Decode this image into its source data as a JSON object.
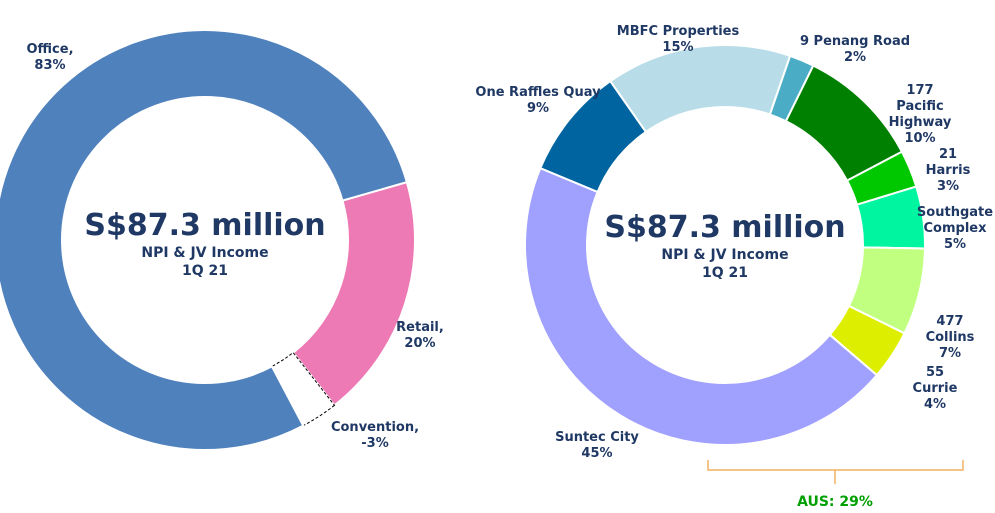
{
  "chart_data": [
    {
      "type": "donut",
      "center_title": "S$87.3 million",
      "center_subtitle": "NPI & JV Income",
      "center_period": "1Q 21",
      "categories": [
        "Office,",
        "Retail,",
        "Convention,"
      ],
      "values": [
        83,
        20,
        -3
      ],
      "value_labels": [
        "83%",
        "20%",
        "-3%"
      ],
      "colors": [
        "#4f81bd",
        "#ee7ab5",
        "#ffffff"
      ]
    },
    {
      "type": "donut",
      "center_title": "S$87.3 million",
      "center_subtitle": "NPI & JV Income",
      "center_period": "1Q 21",
      "categories": [
        "MBFC Properties",
        "9 Penang Road",
        "177 Pacific Highway",
        "21 Harris",
        "Southgate Complex",
        "477 Collins",
        "55 Currie",
        "Suntec City",
        "One Raffles Quay"
      ],
      "values": [
        15,
        2,
        10,
        3,
        5,
        7,
        4,
        45,
        9
      ],
      "value_labels": [
        "15%",
        "2%",
        "10%",
        "3%",
        "5%",
        "7%",
        "4%",
        "45%",
        "9%"
      ],
      "colors": [
        "#b8dde8",
        "#4bacc6",
        "#008000",
        "#00c800",
        "#00f5a0",
        "#c0ff80",
        "#ddee00",
        "#a0a0ff",
        "#0064a0"
      ],
      "annotation": "AUS: 29%"
    }
  ]
}
